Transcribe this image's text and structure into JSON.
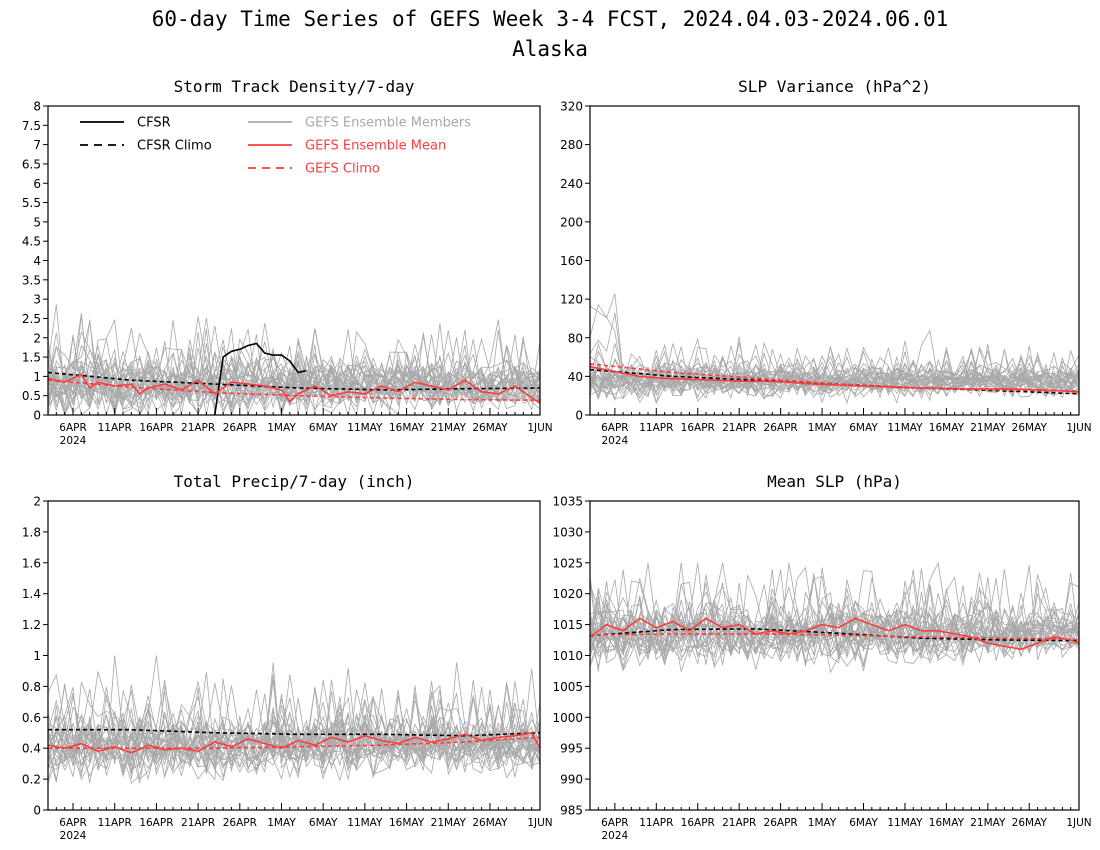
{
  "title": "60-day Time Series of GEFS Week 3-4 FCST, 2024.04.03-2024.06.01",
  "subtitle": "Alaska",
  "x_axis": {
    "tick_labels": [
      "6APR",
      "11APR",
      "16APR",
      "21APR",
      "26APR",
      "1MAY",
      "6MAY",
      "11MAY",
      "16MAY",
      "21MAY",
      "26MAY",
      "1JUN"
    ],
    "tick_days": [
      3,
      8,
      13,
      18,
      23,
      28,
      33,
      38,
      43,
      48,
      53,
      59
    ],
    "year_label": "2024",
    "xlim": [
      0,
      59
    ]
  },
  "legend": {
    "placement": "top-left of first panel",
    "entries": [
      {
        "label": "CFSR",
        "color": "#000000",
        "dashed": false
      },
      {
        "label": "CFSR Climo",
        "color": "#000000",
        "dashed": true
      },
      {
        "label": "GEFS Ensemble Members",
        "color": "#a8a8a8",
        "dashed": false
      },
      {
        "label": "GEFS Ensemble Mean",
        "color": "#ff3c3c",
        "dashed": false
      },
      {
        "label": "GEFS Climo",
        "color": "#ff3c3c",
        "dashed": true
      }
    ]
  },
  "colors": {
    "cfsr": "#000000",
    "members": "#a8a8a8",
    "mean": "#ff3c3c"
  },
  "chart_data": [
    {
      "type": "line",
      "title": "Storm Track Density/7-day",
      "ylim": [
        0,
        8
      ],
      "yticks": [
        "0",
        "0.5",
        "1",
        "1.5",
        "2",
        "2.5",
        "3",
        "3.5",
        "4",
        "4.5",
        "5",
        "5.5",
        "6",
        "6.5",
        "7",
        "7.5",
        "8"
      ],
      "member_envelope": {
        "center": 0.75,
        "spread": 0.75,
        "max": 3.7
      },
      "series": [
        {
          "name": "CFSR",
          "x": [
            20,
            21,
            22,
            23,
            24,
            25,
            26,
            27,
            28,
            29,
            30,
            31
          ],
          "y": [
            0.0,
            1.5,
            1.65,
            1.7,
            1.8,
            1.85,
            1.6,
            1.55,
            1.55,
            1.4,
            1.1,
            1.15
          ]
        },
        {
          "name": "CFSR Climo",
          "x": [
            0,
            10,
            20,
            30,
            40,
            50,
            59
          ],
          "y": [
            1.1,
            0.9,
            0.8,
            0.7,
            0.65,
            0.68,
            0.7
          ]
        },
        {
          "name": "GEFS Ensemble Mean",
          "x": [
            0,
            2,
            4,
            5,
            6,
            8,
            10,
            11,
            12,
            14,
            16,
            18,
            20,
            22,
            24,
            26,
            28,
            29,
            30,
            32,
            34,
            36,
            38,
            40,
            42,
            44,
            46,
            48,
            50,
            52,
            54,
            56,
            58,
            59
          ],
          "y": [
            0.95,
            0.85,
            1.05,
            0.7,
            0.85,
            0.75,
            0.8,
            0.55,
            0.7,
            0.8,
            0.65,
            0.9,
            0.55,
            0.85,
            0.8,
            0.75,
            0.65,
            0.35,
            0.55,
            0.75,
            0.5,
            0.6,
            0.55,
            0.75,
            0.6,
            0.85,
            0.75,
            0.65,
            0.9,
            0.6,
            0.55,
            0.75,
            0.45,
            0.3
          ]
        },
        {
          "name": "GEFS Climo",
          "x": [
            0,
            10,
            20,
            30,
            40,
            50,
            59
          ],
          "y": [
            0.9,
            0.72,
            0.58,
            0.5,
            0.44,
            0.4,
            0.38
          ]
        }
      ]
    },
    {
      "type": "line",
      "title": "SLP Variance (hPa^2)",
      "ylim": [
        0,
        320
      ],
      "yticks": [
        "0",
        "40",
        "80",
        "120",
        "160",
        "200",
        "240",
        "280",
        "320"
      ],
      "member_envelope": {
        "center": 35,
        "spread": 18,
        "max": 140
      },
      "series": [
        {
          "name": "CFSR Climo",
          "x": [
            0,
            10,
            20,
            30,
            40,
            50,
            59
          ],
          "y": [
            47,
            40,
            36,
            32,
            28,
            25,
            22
          ]
        },
        {
          "name": "GEFS Ensemble Mean",
          "x": [
            0,
            3,
            6,
            9,
            12,
            15,
            18,
            21,
            24,
            27,
            30,
            33,
            36,
            39,
            42,
            45,
            48,
            51,
            54,
            57,
            59
          ],
          "y": [
            50,
            45,
            40,
            38,
            37,
            36,
            35,
            35,
            34,
            32,
            31,
            30,
            29,
            28,
            28,
            27,
            27,
            27,
            26,
            25,
            24
          ]
        },
        {
          "name": "GEFS Climo",
          "x": [
            0,
            10,
            20,
            30,
            40,
            50,
            59
          ],
          "y": [
            53,
            44,
            38,
            32,
            28,
            26,
            25
          ]
        }
      ]
    },
    {
      "type": "line",
      "title": "Total Precip/7-day (inch)",
      "ylim": [
        0,
        2
      ],
      "yticks": [
        "0",
        "0.2",
        "0.4",
        "0.6",
        "0.8",
        "1",
        "1.2",
        "1.4",
        "1.6",
        "1.8",
        "2"
      ],
      "member_envelope": {
        "center": 0.42,
        "spread": 0.2,
        "max": 1.0
      },
      "series": [
        {
          "name": "CFSR Climo",
          "x": [
            0,
            10,
            20,
            30,
            40,
            50,
            59
          ],
          "y": [
            0.52,
            0.52,
            0.5,
            0.49,
            0.49,
            0.48,
            0.5
          ]
        },
        {
          "name": "GEFS Ensemble Mean",
          "x": [
            0,
            2,
            4,
            6,
            8,
            10,
            12,
            14,
            16,
            18,
            20,
            22,
            24,
            26,
            28,
            30,
            32,
            34,
            36,
            38,
            40,
            42,
            44,
            46,
            48,
            50,
            52,
            54,
            56,
            58,
            59
          ],
          "y": [
            0.42,
            0.4,
            0.43,
            0.38,
            0.41,
            0.37,
            0.42,
            0.39,
            0.4,
            0.38,
            0.44,
            0.41,
            0.46,
            0.43,
            0.4,
            0.45,
            0.42,
            0.47,
            0.44,
            0.48,
            0.45,
            0.43,
            0.47,
            0.44,
            0.46,
            0.49,
            0.45,
            0.47,
            0.48,
            0.5,
            0.4
          ]
        },
        {
          "name": "GEFS Climo",
          "x": [
            0,
            10,
            20,
            30,
            40,
            50,
            59
          ],
          "y": [
            0.4,
            0.4,
            0.4,
            0.41,
            0.42,
            0.44,
            0.47
          ]
        }
      ]
    },
    {
      "type": "line",
      "title": "Mean SLP (hPa)",
      "ylim": [
        985,
        1035
      ],
      "yticks": [
        "985",
        "990",
        "995",
        "1000",
        "1005",
        "1010",
        "1015",
        "1020",
        "1025",
        "1030",
        "1035"
      ],
      "member_envelope": {
        "center": 1013.5,
        "spread": 5,
        "max": 1025
      },
      "series": [
        {
          "name": "CFSR Climo",
          "x": [
            0,
            10,
            20,
            30,
            40,
            50,
            59
          ],
          "y": [
            1013.2,
            1014.2,
            1014.3,
            1013.6,
            1012.8,
            1012.5,
            1012.4
          ]
        },
        {
          "name": "GEFS Ensemble Mean",
          "x": [
            0,
            2,
            4,
            6,
            8,
            10,
            12,
            14,
            16,
            18,
            20,
            22,
            24,
            26,
            28,
            30,
            32,
            34,
            36,
            38,
            40,
            42,
            44,
            46,
            48,
            50,
            52,
            54,
            56,
            58,
            59
          ],
          "y": [
            1013,
            1015,
            1014,
            1016,
            1014.5,
            1015.5,
            1014,
            1016,
            1014.5,
            1015,
            1013.5,
            1014,
            1013.5,
            1014,
            1015,
            1014.5,
            1016,
            1015,
            1014,
            1015,
            1014,
            1014,
            1013.5,
            1013,
            1012,
            1011.5,
            1011,
            1012,
            1013,
            1012.5,
            1012
          ]
        },
        {
          "name": "GEFS Climo",
          "x": [
            0,
            10,
            20,
            30,
            40,
            50,
            59
          ],
          "y": [
            1013.3,
            1013.5,
            1013.5,
            1013.3,
            1013,
            1012.8,
            1012.6
          ]
        }
      ]
    }
  ]
}
